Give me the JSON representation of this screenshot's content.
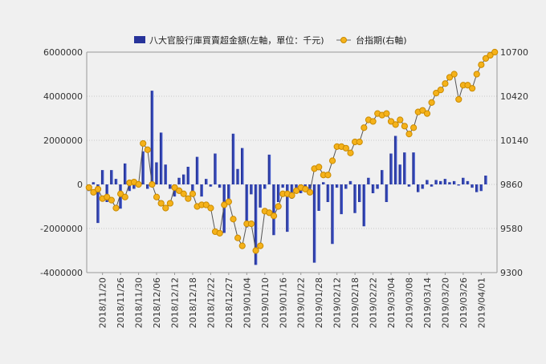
{
  "chart_data": {
    "type": "bar+line",
    "legend": {
      "position": "top",
      "bar_label": "八大官股行庫買賣超金額(左軸，單位：千元)",
      "line_label": "台指期(右軸)"
    },
    "grid": true,
    "left_axis": {
      "min": -4000000,
      "max": 6000000,
      "ticks": [
        "6000000",
        "4000000",
        "2000000",
        "0",
        "-2000000",
        "-4000000"
      ],
      "tick_values": [
        6000000,
        4000000,
        2000000,
        0,
        -2000000,
        -4000000
      ]
    },
    "right_axis": {
      "min": 9300,
      "max": 10700,
      "ticks": [
        "10700",
        "10420",
        "10140",
        "9860",
        "9580",
        "9300"
      ],
      "tick_values": [
        10700,
        10420,
        10140,
        9860,
        9580,
        9300
      ]
    },
    "x_tick_labels": [
      "2018/11/20",
      "2018/11/26",
      "2018/11/30",
      "2018/12/06",
      "2018/12/12",
      "2018/12/18",
      "2018/12/22",
      "2018/12/27",
      "2019/01/04",
      "2019/01/10",
      "2019/01/16",
      "2019/01/22",
      "2019/01/28",
      "2019/02/12",
      "2019/02/18",
      "2019/02/22",
      "2019/03/04",
      "2019/03/08",
      "2019/03/14",
      "2019/03/20",
      "2019/03/26",
      "2019/04/01"
    ],
    "x_tick_indices": [
      3,
      7,
      11,
      15,
      19,
      23,
      27,
      31,
      35,
      39,
      43,
      47,
      51,
      55,
      59,
      63,
      67,
      71,
      75,
      79,
      83,
      87
    ],
    "series": [
      {
        "name": "八大官股行庫買賣超金額(左軸，單位：千元)",
        "type": "bar",
        "color": "#27339a",
        "values": [
          -300000,
          100000,
          -1750000,
          650000,
          -800000,
          650000,
          250000,
          -1100000,
          950000,
          -300000,
          -200000,
          -100000,
          1500000,
          -200000,
          4250000,
          1000000,
          2350000,
          900000,
          -200000,
          -550000,
          300000,
          450000,
          800000,
          -300000,
          1250000,
          -550000,
          250000,
          -100000,
          1400000,
          -150000,
          -2200000,
          -900000,
          2300000,
          700000,
          1650000,
          -1950000,
          -450000,
          -3650000,
          -1050000,
          -200000,
          1350000,
          -2300000,
          -800000,
          -150000,
          -2150000,
          -650000,
          -150000,
          -400000,
          -200000,
          -200000,
          -3550000,
          -1200000,
          100000,
          -800000,
          -2700000,
          -150000,
          -1350000,
          -200000,
          150000,
          -1300000,
          -800000,
          -1900000,
          300000,
          -400000,
          -200000,
          650000,
          -800000,
          1400000,
          2200000,
          900000,
          1450000,
          -100000,
          1450000,
          -350000,
          -200000,
          200000,
          -100000,
          200000,
          150000,
          250000,
          100000,
          150000,
          -50000,
          300000,
          150000,
          -150000,
          -350000,
          -300000,
          400000
        ],
        "x_index_of_first": 0
      },
      {
        "name": "台指期(右軸)",
        "type": "line",
        "color": "#f0a500",
        "values": [
          9840,
          9810,
          9830,
          9770,
          9780,
          9760,
          9710,
          9800,
          9780,
          9870,
          9875,
          9860,
          10120,
          10080,
          9860,
          9780,
          9740,
          9710,
          9740,
          9840,
          9820,
          9800,
          9770,
          9800,
          9720,
          9730,
          9730,
          9710,
          9560,
          9550,
          9730,
          9750,
          9640,
          9520,
          9470,
          9610,
          9610,
          9440,
          9470,
          9690,
          9680,
          9660,
          9720,
          9800,
          9800,
          9790,
          9820,
          9840,
          9830,
          9810,
          9960,
          9970,
          9920,
          9920,
          10010,
          10100,
          10100,
          10090,
          10060,
          10130,
          10130,
          10220,
          10270,
          10260,
          10310,
          10300,
          10310,
          10260,
          10240,
          10270,
          10230,
          10180,
          10220,
          10320,
          10330,
          10310,
          10380,
          10440,
          10460,
          10500,
          10540,
          10560,
          10400,
          10490,
          10490,
          10470,
          10560,
          10620,
          10660,
          10680,
          10700
        ],
        "x_index_of_first": 0
      }
    ]
  }
}
